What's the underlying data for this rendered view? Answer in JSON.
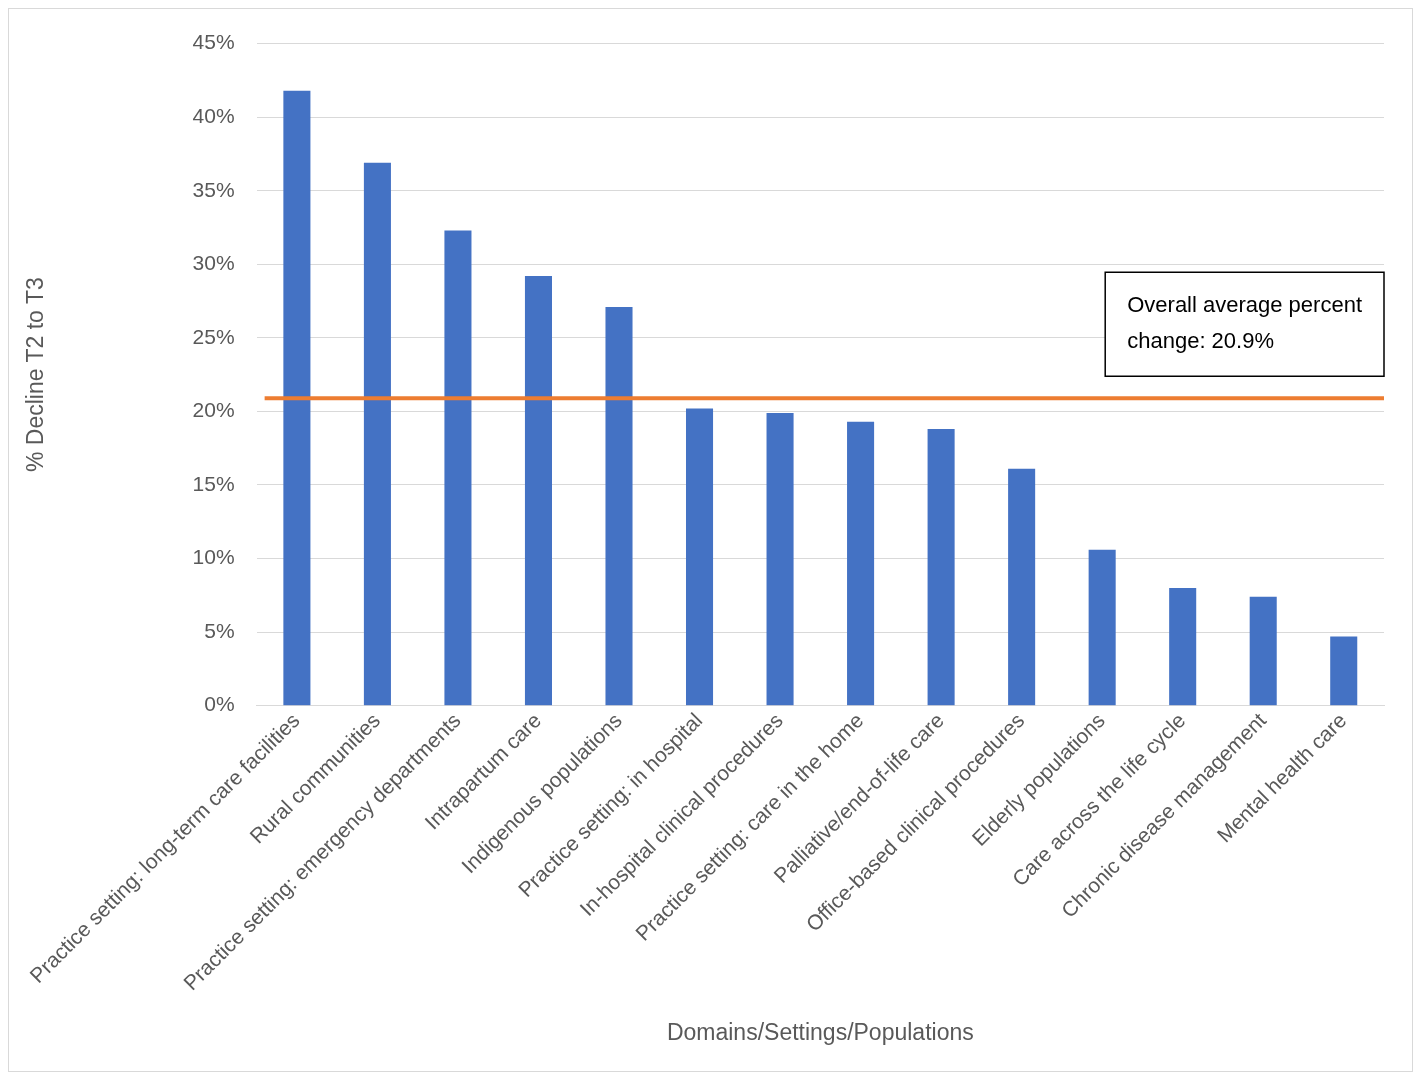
{
  "chart_data": {
    "type": "bar",
    "xlabel": "Domains/Settings/Populations",
    "ylabel": "% Decline T2 to T3",
    "categories": [
      "Practice setting: long-term care facilities",
      "Rural communities",
      "Practice setting: emergency departments",
      "Intrapartum care",
      "Indigenous populations",
      "Practice setting: in hospital",
      "In-hospital clinical procedures",
      "Practice setting: care in the home",
      "Palliative/end-of-life care",
      "Office-based clinical procedures",
      "Elderly populations",
      "Care across the life cycle",
      "Chronic disease management",
      "Mental health care"
    ],
    "values": [
      41.8,
      36.9,
      32.3,
      29.2,
      27.1,
      20.2,
      19.9,
      19.3,
      18.8,
      16.1,
      10.6,
      8.0,
      7.4,
      4.7
    ],
    "color": "#4472c4",
    "ylim": [
      0,
      45
    ],
    "yticks": [
      {
        "value": 0,
        "label": "0%"
      },
      {
        "value": 5,
        "label": "5%"
      },
      {
        "value": 10,
        "label": "10%"
      },
      {
        "value": 15,
        "label": "15%"
      },
      {
        "value": 20,
        "label": "20%"
      },
      {
        "value": 25,
        "label": "25%"
      },
      {
        "value": 30,
        "label": "30%"
      },
      {
        "value": 35,
        "label": "35%"
      },
      {
        "value": 40,
        "label": "40%"
      },
      {
        "value": 45,
        "label": "45%"
      }
    ],
    "grid": "y",
    "ref_lines": [
      {
        "axis": "y",
        "value": 20.9,
        "label": "Overall average percent change: 20.9%",
        "color": "#ed7d31"
      }
    ]
  }
}
